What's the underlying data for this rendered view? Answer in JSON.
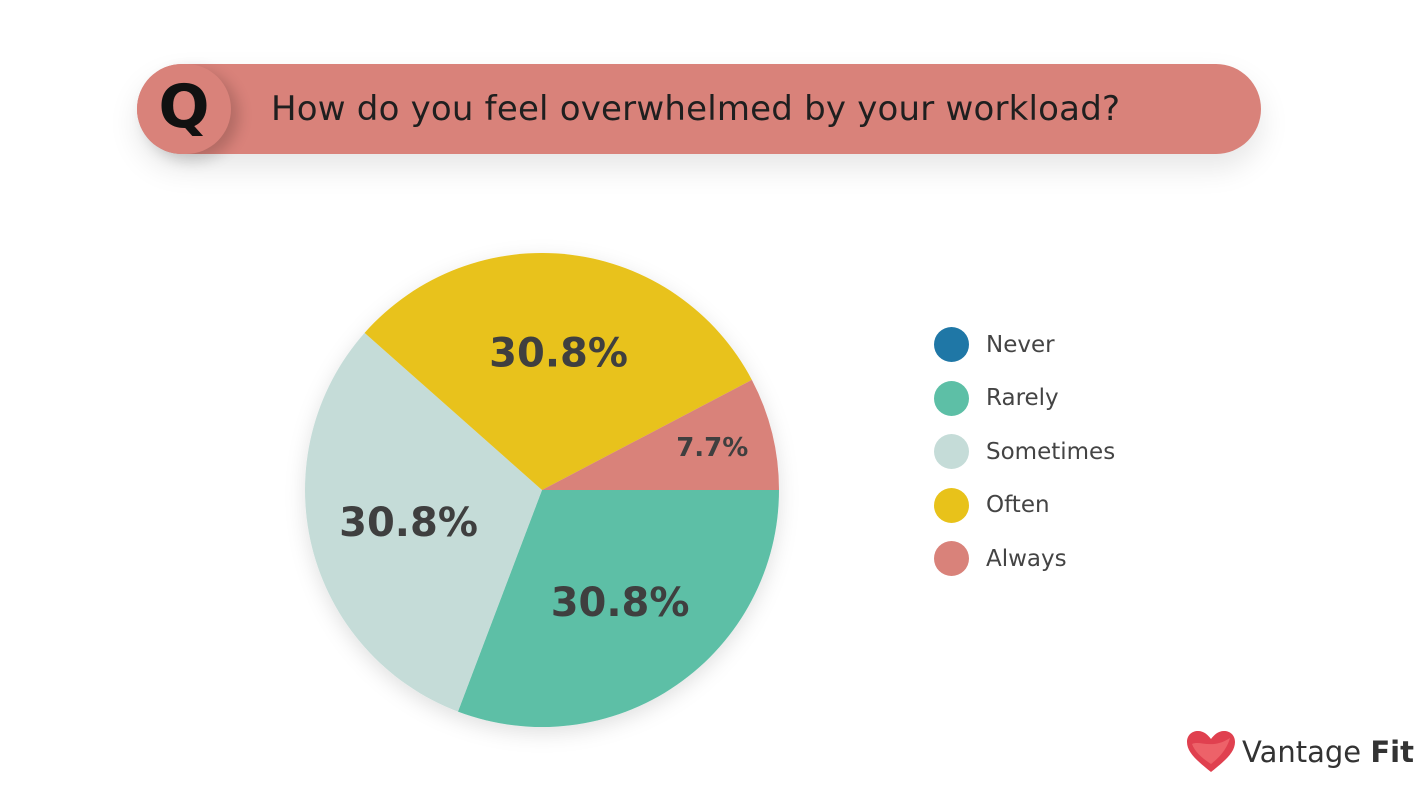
{
  "question": {
    "badge": "Q",
    "text": "How do you feel overwhelmed by your workload?"
  },
  "chart_data": {
    "type": "pie",
    "slices": [
      {
        "label": "Never",
        "value": 0,
        "value_label": "",
        "color": "#1f77a6"
      },
      {
        "label": "Rarely",
        "value": 30.8,
        "value_label": "30.8%",
        "color": "#5dbfa6"
      },
      {
        "label": "Sometimes",
        "value": 30.8,
        "value_label": "30.8%",
        "color": "#c5dcd8"
      },
      {
        "label": "Often",
        "value": 30.8,
        "value_label": "30.8%",
        "color": "#e8c21a"
      },
      {
        "label": "Always",
        "value": 7.7,
        "value_label": "7.7%",
        "color": "#d9827a"
      }
    ],
    "legend_position": "right"
  },
  "brand": {
    "name_light": "Vantage",
    "name_bold": "Fit",
    "logo_icon": "heart-icon"
  }
}
